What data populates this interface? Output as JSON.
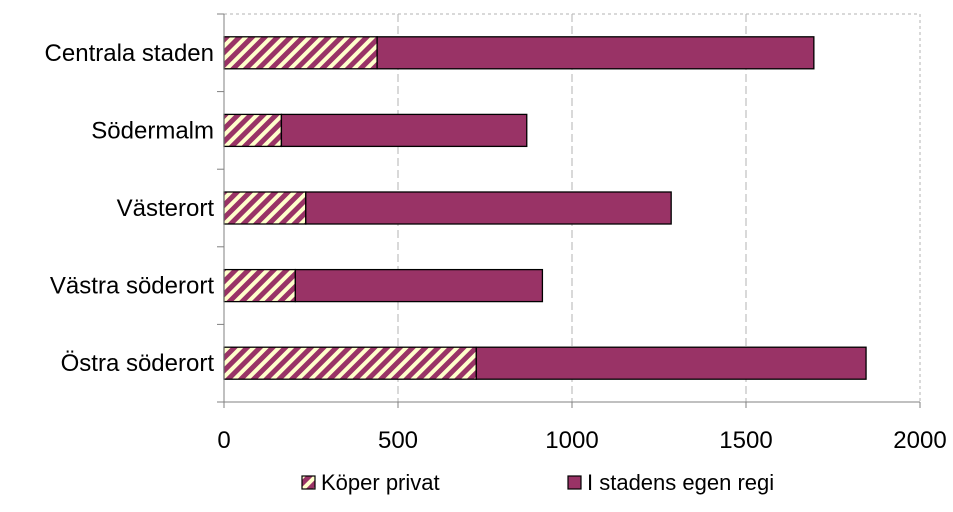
{
  "chart_data": {
    "type": "bar",
    "orientation": "horizontal",
    "stacked": true,
    "categories": [
      "Centrala staden",
      "Södermalm",
      "Västerort",
      "Västra söderort",
      "Östra söderort"
    ],
    "series": [
      {
        "name": "Köper privat",
        "values": [
          440,
          165,
          235,
          205,
          725
        ],
        "pattern": "diagonal-stripes",
        "color": "#993366",
        "stripe_color": "#ffffcc"
      },
      {
        "name": "I stadens egen regi",
        "values": [
          1255,
          705,
          1050,
          710,
          1120
        ],
        "color": "#993366"
      }
    ],
    "xlim": [
      0,
      2000
    ],
    "xticks": [
      "0",
      "500",
      "1000",
      "1500",
      "2000"
    ],
    "xtick_values": [
      0,
      500,
      1000,
      1500,
      2000
    ],
    "grid": true,
    "legend_position": "bottom",
    "title": "",
    "xlabel": "",
    "ylabel": ""
  }
}
